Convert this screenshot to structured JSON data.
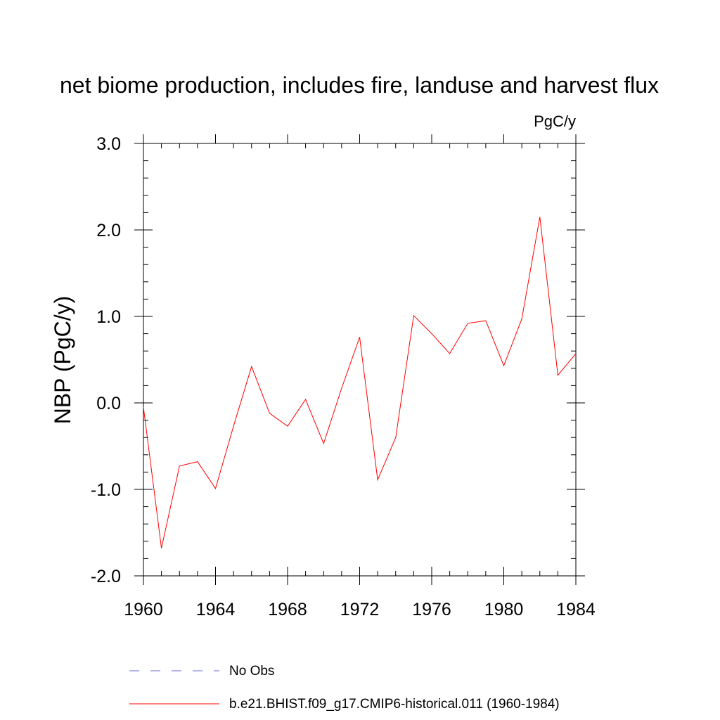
{
  "chart_data": {
    "type": "line",
    "title": "net biome production, includes fire, landuse and harvest flux",
    "units": "PgC/y",
    "ylabel": "NBP  (PgC/y)",
    "xlabel": "",
    "xlim": [
      1960,
      1984
    ],
    "ylim": [
      -2.0,
      3.0
    ],
    "x_ticks": [
      1960,
      1964,
      1968,
      1972,
      1976,
      1980,
      1984
    ],
    "x_tick_labels": [
      "1960",
      "1964",
      "1968",
      "1972",
      "1976",
      "1980",
      "1984"
    ],
    "y_ticks": [
      -2.0,
      -1.0,
      0.0,
      1.0,
      2.0,
      3.0
    ],
    "y_tick_labels": [
      "-2.0",
      "-1.0",
      "0.0",
      "1.0",
      "2.0",
      "3.0"
    ],
    "grid": false,
    "legend_position": "bottom",
    "series": [
      {
        "name": "b.e21.BHIST.f09_g17.CMIP6-historical.011 (1960-1984)",
        "color": "#ff0000",
        "style": "solid",
        "x": [
          1960,
          1961,
          1962,
          1963,
          1964,
          1965,
          1966,
          1967,
          1968,
          1969,
          1970,
          1971,
          1972,
          1973,
          1974,
          1975,
          1976,
          1977,
          1978,
          1979,
          1980,
          1981,
          1982,
          1983,
          1984
        ],
        "y": [
          -0.05,
          -1.68,
          -0.73,
          -0.68,
          -0.99,
          -0.27,
          0.42,
          -0.12,
          -0.27,
          0.04,
          -0.47,
          0.17,
          0.76,
          -0.89,
          -0.4,
          1.01,
          0.8,
          0.57,
          0.92,
          0.95,
          0.43,
          0.97,
          2.15,
          0.32,
          0.57
        ]
      }
    ],
    "legend": [
      {
        "label": "No Obs",
        "color": "#6a6ad0",
        "style": "dashed"
      },
      {
        "label": "b.e21.BHIST.f09_g17.CMIP6-historical.011 (1960-1984)",
        "color": "#ff0000",
        "style": "solid"
      }
    ]
  }
}
